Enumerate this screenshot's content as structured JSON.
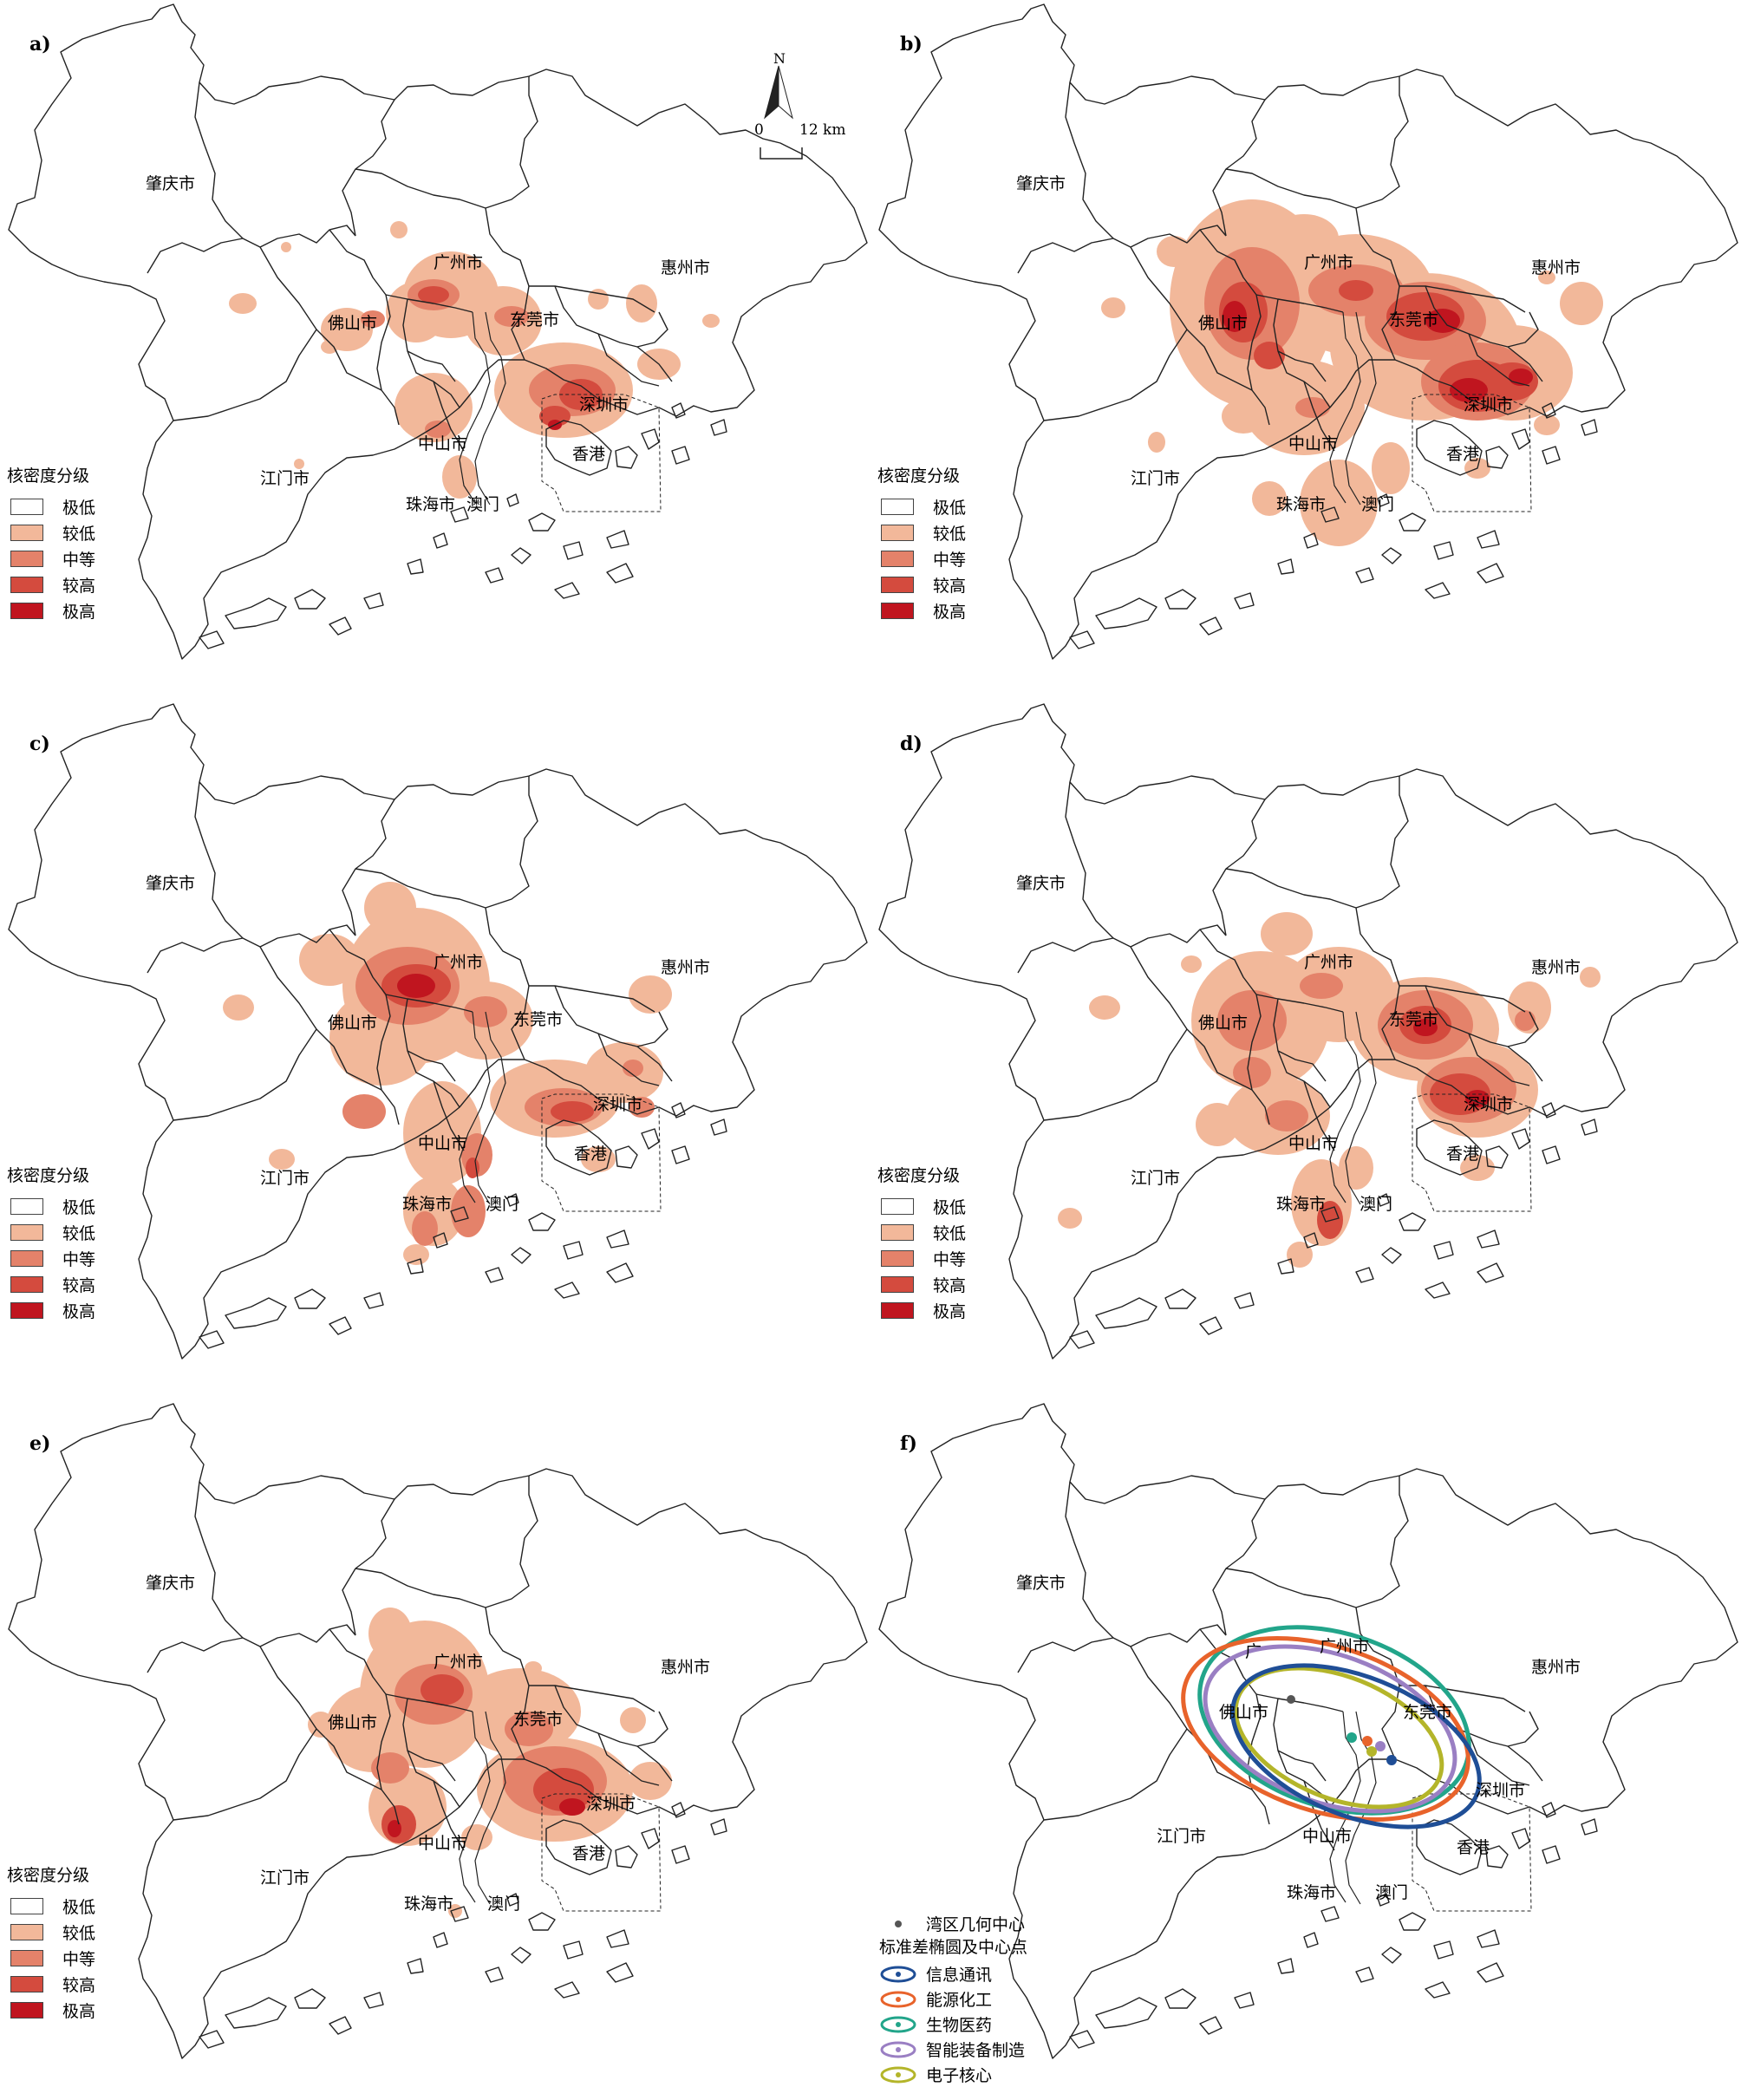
{
  "colors": {
    "levels": [
      "#ffffff",
      "#f2b89a",
      "#e4826a",
      "#d44b3e",
      "#c0151f"
    ],
    "outline": "#222222",
    "ellipses": {
      "info": "#1f4e96",
      "energy": "#e8632b",
      "bio": "#22a58a",
      "equip": "#9a7fc3",
      "electronic": "#b4b52a"
    }
  },
  "cities": {
    "zhaoqing": "肇庆市",
    "guangzhou": "广州市",
    "huizhou": "惠州市",
    "foshan": "佛山市",
    "dongguan": "东莞市",
    "shenzhen": "深圳市",
    "zhongshan": "中山市",
    "jiangmen": "江门市",
    "hongkong": "香港",
    "zhuhai": "珠海市",
    "macau": "澳门"
  },
  "panels": [
    {
      "label": "a)"
    },
    {
      "label": "b)"
    },
    {
      "label": "c)"
    },
    {
      "label": "d)"
    },
    {
      "label": "e)"
    },
    {
      "label": "f)"
    }
  ],
  "legend": {
    "title": "核密度分级",
    "items": [
      "极低",
      "较低",
      "中等",
      "较高",
      "极高"
    ]
  },
  "north_arrow": {
    "label": "N"
  },
  "scale_bar": {
    "start": "0",
    "end": "12 km"
  },
  "ellipse_legend": {
    "center_label": "湾区几何中心",
    "title": "标准差椭圆及中心点",
    "items": [
      "信息通讯",
      "能源化工",
      "生物医药",
      "智能装备制造",
      "电子核心"
    ]
  },
  "f_panel_extra_labels": {
    "guangzhou_cut": "广"
  }
}
